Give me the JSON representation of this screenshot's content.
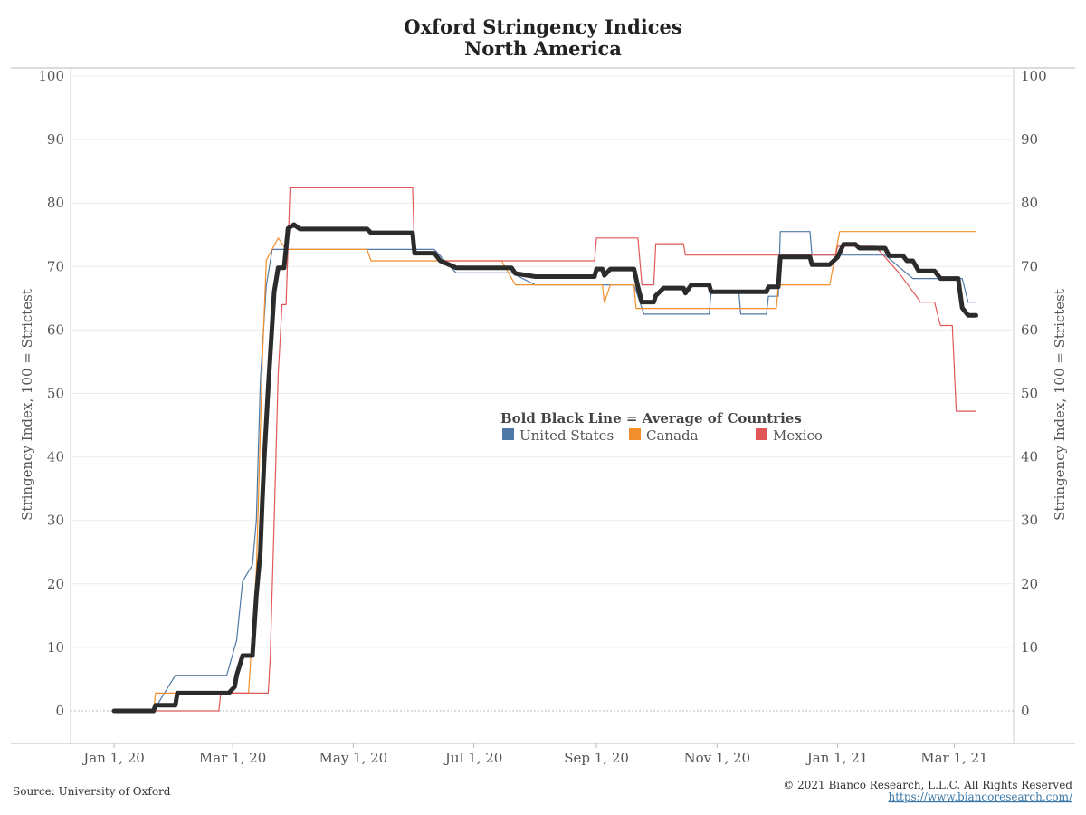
{
  "chart_data": {
    "type": "line",
    "title": "Oxford Stringency Indices",
    "subtitle": "North America",
    "ylabel_left": "Stringency Index, 100 = Strictest",
    "ylabel_right": "Stringency Index, 100 = Strictest",
    "ylim": [
      0,
      100
    ],
    "yticks": [
      0,
      10,
      20,
      30,
      40,
      50,
      60,
      70,
      80,
      90,
      100
    ],
    "xlim": [
      "2019-12-10",
      "2021-03-31"
    ],
    "xticks": [
      {
        "date": "2020-01-01",
        "label": "Jan 1, 20"
      },
      {
        "date": "2020-03-01",
        "label": "Mar 1, 20"
      },
      {
        "date": "2020-05-01",
        "label": "May 1, 20"
      },
      {
        "date": "2020-07-01",
        "label": "Jul 1, 20"
      },
      {
        "date": "2020-09-01",
        "label": "Sep 1, 20"
      },
      {
        "date": "2020-11-01",
        "label": "Nov 1, 20"
      },
      {
        "date": "2021-01-01",
        "label": "Jan 1, 21"
      },
      {
        "date": "2021-03-01",
        "label": "Mar 1, 21"
      }
    ],
    "grid": true,
    "legend": {
      "title": "Bold Black Line = Average of Countries",
      "placement": "center-right"
    },
    "series": [
      {
        "name": "United States",
        "color": "#4e79a7",
        "points": [
          [
            "2020-01-01",
            0
          ],
          [
            "2020-01-21",
            0
          ],
          [
            "2020-02-01",
            5.6
          ],
          [
            "2020-02-27",
            5.6
          ],
          [
            "2020-03-03",
            11.1
          ],
          [
            "2020-03-06",
            20.4
          ],
          [
            "2020-03-11",
            23
          ],
          [
            "2020-03-13",
            30
          ],
          [
            "2020-03-15",
            52
          ],
          [
            "2020-03-18",
            67
          ],
          [
            "2020-03-21",
            72.7
          ],
          [
            "2020-06-11",
            72.7
          ],
          [
            "2020-06-22",
            69.0
          ],
          [
            "2020-07-20",
            69.0
          ],
          [
            "2020-08-01",
            67.1
          ],
          [
            "2020-09-20",
            67.1
          ],
          [
            "2020-09-25",
            62.5
          ],
          [
            "2020-10-28",
            62.5
          ],
          [
            "2020-10-29",
            66
          ],
          [
            "2020-11-12",
            66
          ],
          [
            "2020-11-13",
            62.5
          ],
          [
            "2020-11-26",
            62.5
          ],
          [
            "2020-11-27",
            65.3
          ],
          [
            "2020-12-02",
            65.3
          ],
          [
            "2020-12-03",
            75.5
          ],
          [
            "2020-12-18",
            75.5
          ],
          [
            "2020-12-19",
            71.8
          ],
          [
            "2021-01-25",
            71.8
          ],
          [
            "2021-02-08",
            68.1
          ],
          [
            "2021-03-05",
            68.1
          ],
          [
            "2021-03-08",
            64.4
          ],
          [
            "2021-03-12",
            64.4
          ]
        ]
      },
      {
        "name": "Canada",
        "color": "#f28e2b",
        "points": [
          [
            "2020-01-01",
            0
          ],
          [
            "2020-01-21",
            0
          ],
          [
            "2020-01-22",
            2.8
          ],
          [
            "2020-03-09",
            2.8
          ],
          [
            "2020-03-13",
            22
          ],
          [
            "2020-03-16",
            55
          ],
          [
            "2020-03-18",
            71
          ],
          [
            "2020-03-24",
            74.5
          ],
          [
            "2020-03-28",
            72.7
          ],
          [
            "2020-05-08",
            72.7
          ],
          [
            "2020-05-10",
            70.9
          ],
          [
            "2020-07-15",
            70.9
          ],
          [
            "2020-07-22",
            67.1
          ],
          [
            "2020-09-04",
            67.1
          ],
          [
            "2020-09-05",
            64.3
          ],
          [
            "2020-09-08",
            67.1
          ],
          [
            "2020-09-20",
            67.1
          ],
          [
            "2020-09-21",
            63.4
          ],
          [
            "2020-12-01",
            63.4
          ],
          [
            "2020-12-02",
            67.1
          ],
          [
            "2020-12-28",
            67.1
          ],
          [
            "2021-01-02",
            75.5
          ],
          [
            "2021-03-12",
            75.5
          ]
        ]
      },
      {
        "name": "Mexico",
        "color": "#e15759",
        "points": [
          [
            "2020-01-01",
            0
          ],
          [
            "2020-02-23",
            0
          ],
          [
            "2020-02-24",
            2.8
          ],
          [
            "2020-03-19",
            2.8
          ],
          [
            "2020-03-20",
            8.3
          ],
          [
            "2020-03-22",
            30
          ],
          [
            "2020-03-24",
            53
          ],
          [
            "2020-03-26",
            64
          ],
          [
            "2020-03-28",
            64
          ],
          [
            "2020-03-30",
            82.4
          ],
          [
            "2020-05-31",
            82.4
          ],
          [
            "2020-06-01",
            72.2
          ],
          [
            "2020-06-10",
            72.2
          ],
          [
            "2020-06-14",
            70.9
          ],
          [
            "2020-08-31",
            70.9
          ],
          [
            "2020-09-01",
            74.5
          ],
          [
            "2020-09-22",
            74.5
          ],
          [
            "2020-09-24",
            67.1
          ],
          [
            "2020-09-30",
            67.1
          ],
          [
            "2020-10-01",
            73.6
          ],
          [
            "2020-10-15",
            73.6
          ],
          [
            "2020-10-16",
            71.8
          ],
          [
            "2020-12-31",
            71.8
          ],
          [
            "2021-01-01",
            73.2
          ],
          [
            "2021-01-20",
            73.2
          ],
          [
            "2021-02-01",
            69.0
          ],
          [
            "2021-02-12",
            64.4
          ],
          [
            "2021-02-19",
            64.4
          ],
          [
            "2021-02-22",
            60.7
          ],
          [
            "2021-02-28",
            60.7
          ],
          [
            "2021-03-02",
            47.2
          ],
          [
            "2021-03-12",
            47.2
          ]
        ]
      },
      {
        "name": "Average of Countries",
        "color": "#2b2b2b",
        "bold": true,
        "points": [
          [
            "2020-01-01",
            0
          ],
          [
            "2020-01-21",
            0
          ],
          [
            "2020-01-22",
            0.9
          ],
          [
            "2020-02-01",
            0.9
          ],
          [
            "2020-02-02",
            2.8
          ],
          [
            "2020-02-28",
            2.8
          ],
          [
            "2020-03-02",
            3.8
          ],
          [
            "2020-03-03",
            5.6
          ],
          [
            "2020-03-06",
            8.7
          ],
          [
            "2020-03-11",
            8.7
          ],
          [
            "2020-03-13",
            18.2
          ],
          [
            "2020-03-15",
            25
          ],
          [
            "2020-03-16",
            33.1
          ],
          [
            "2020-03-17",
            40
          ],
          [
            "2020-03-19",
            50.9
          ],
          [
            "2020-03-22",
            66
          ],
          [
            "2020-03-24",
            69.8
          ],
          [
            "2020-03-27",
            69.8
          ],
          [
            "2020-03-29",
            76.0
          ],
          [
            "2020-04-01",
            76.6
          ],
          [
            "2020-04-04",
            75.9
          ],
          [
            "2020-05-08",
            75.9
          ],
          [
            "2020-05-10",
            75.3
          ],
          [
            "2020-05-31",
            75.3
          ],
          [
            "2020-06-01",
            72.1
          ],
          [
            "2020-06-11",
            72.1
          ],
          [
            "2020-06-14",
            70.9
          ],
          [
            "2020-06-22",
            69.8
          ],
          [
            "2020-07-20",
            69.8
          ],
          [
            "2020-07-22",
            68.9
          ],
          [
            "2020-08-01",
            68.4
          ],
          [
            "2020-08-31",
            68.4
          ],
          [
            "2020-09-01",
            69.6
          ],
          [
            "2020-09-04",
            69.6
          ],
          [
            "2020-09-05",
            68.6
          ],
          [
            "2020-09-08",
            69.6
          ],
          [
            "2020-09-20",
            69.6
          ],
          [
            "2020-09-22",
            66.8
          ],
          [
            "2020-09-24",
            64.4
          ],
          [
            "2020-09-30",
            64.4
          ],
          [
            "2020-10-01",
            65.4
          ],
          [
            "2020-10-05",
            66.6
          ],
          [
            "2020-10-15",
            66.6
          ],
          [
            "2020-10-16",
            65.8
          ],
          [
            "2020-10-19",
            67.1
          ],
          [
            "2020-10-28",
            67.1
          ],
          [
            "2020-10-29",
            66.0
          ],
          [
            "2020-11-26",
            66.0
          ],
          [
            "2020-11-27",
            66.8
          ],
          [
            "2020-12-02",
            66.8
          ],
          [
            "2020-12-03",
            71.5
          ],
          [
            "2020-12-18",
            71.5
          ],
          [
            "2020-12-19",
            70.3
          ],
          [
            "2020-12-28",
            70.3
          ],
          [
            "2021-01-01",
            71.5
          ],
          [
            "2021-01-04",
            73.5
          ],
          [
            "2021-01-10",
            73.5
          ],
          [
            "2021-01-12",
            72.9
          ],
          [
            "2021-01-25",
            72.9
          ],
          [
            "2021-01-27",
            71.7
          ],
          [
            "2021-02-03",
            71.7
          ],
          [
            "2021-02-05",
            70.9
          ],
          [
            "2021-02-08",
            70.9
          ],
          [
            "2021-02-11",
            69.3
          ],
          [
            "2021-02-19",
            69.3
          ],
          [
            "2021-02-22",
            68.1
          ],
          [
            "2021-03-03",
            68.1
          ],
          [
            "2021-03-05",
            63.5
          ],
          [
            "2021-03-08",
            62.3
          ],
          [
            "2021-03-12",
            62.3
          ]
        ]
      }
    ]
  },
  "legend_items": [
    {
      "name": "United States",
      "color": "#4e79a7"
    },
    {
      "name": "Canada",
      "color": "#f28e2b"
    },
    {
      "name": "Mexico",
      "color": "#e15759"
    }
  ],
  "footer": {
    "source": "Source: University of Oxford",
    "copyright": "© 2021 Bianco Research, L.L.C. All Rights Reserved",
    "url": "https://www.biancoresearch.com/"
  }
}
